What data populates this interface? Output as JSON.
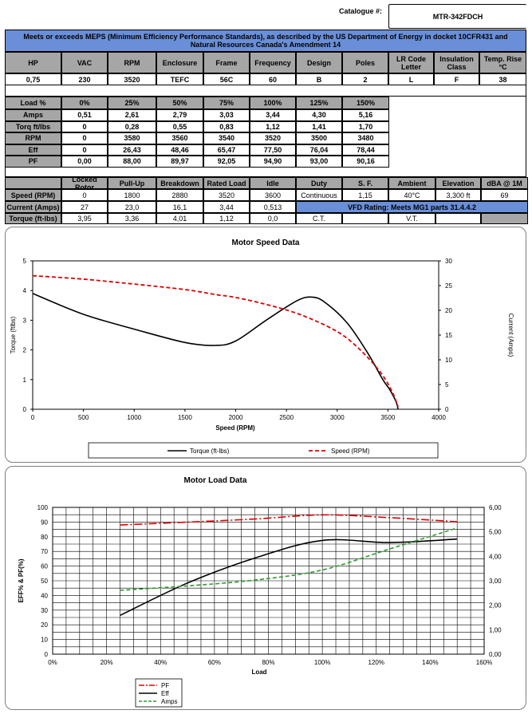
{
  "catalogue": {
    "label": "Catalogue #:",
    "value": "MTR-342FDCH"
  },
  "banner": "Meets or exceeds MEPS (Minimum Efficiency Performance Standards), as described by the US Department of Energy in docket 10CFR431 and Natural Resources Canada's Amendment 14",
  "specs": {
    "headers": [
      "HP",
      "VAC",
      "RPM",
      "Enclosure",
      "Frame",
      "Frequency",
      "Design",
      "Poles",
      "LR Code Letter",
      "Insulation Class",
      "Temp. Rise °C"
    ],
    "values": [
      "0,75",
      "230",
      "3520",
      "TEFC",
      "56C",
      "60",
      "B",
      "2",
      "L",
      "F",
      "38"
    ]
  },
  "load_table": {
    "headers": [
      "Load %",
      "0%",
      "25%",
      "50%",
      "75%",
      "100%",
      "125%",
      "150%"
    ],
    "rows": [
      [
        "Amps",
        "0,51",
        "2,61",
        "2,79",
        "3,03",
        "3,44",
        "4,30",
        "5,16"
      ],
      [
        "Torq ft/lbs",
        "0",
        "0,28",
        "0,55",
        "0,83",
        "1,12",
        "1,41",
        "1,70"
      ],
      [
        "RPM",
        "0",
        "3580",
        "3560",
        "3540",
        "3520",
        "3500",
        "3480"
      ],
      [
        "Eff",
        "0",
        "26,43",
        "48,46",
        "65,47",
        "77,50",
        "76,04",
        "78,44"
      ],
      [
        "PF",
        "0,00",
        "88,00",
        "89,97",
        "92,05",
        "94,90",
        "93,00",
        "90,16"
      ]
    ]
  },
  "perf_table": {
    "headers": [
      "Locked Rotor",
      "Pull-Up",
      "Breakdown",
      "Rated Load",
      "Idle",
      "Duty",
      "S. F.",
      "Ambient",
      "Elevation",
      "dBA @ 1M"
    ],
    "speed_label": "Speed (RPM)",
    "speed": [
      "0",
      "1800",
      "2880",
      "3520",
      "3600",
      "Continuous",
      "1,15",
      "40°C",
      "3,300 ft",
      "69"
    ],
    "current_label": "Current (Amps)",
    "current": [
      "27",
      "23,0",
      "16,1",
      "3,44",
      "0,513"
    ],
    "vfd": "VFD Rating: Meets MG1 parts 31.4.4.2",
    "torque_label": "Torque (ft-lbs)",
    "torque": [
      "3,95",
      "3,36",
      "4,01",
      "1,12",
      "0,0",
      "C.T.",
      "",
      "V.T.",
      ""
    ]
  },
  "colors": {
    "header_gray": "#a6a6a6",
    "banner_blue": "#6a8fd8",
    "red": "#e00000",
    "green": "#2e9a2e",
    "black": "#000000"
  },
  "chart_data": [
    {
      "type": "line",
      "title": "Motor Speed Data",
      "xlabel": "Speed (RPM)",
      "ylabel": "Torque (ftlbs)",
      "ylabel_right": "Current (Amps)",
      "xlim": [
        0,
        4000
      ],
      "ylim": [
        0,
        5
      ],
      "ylim_right": [
        0,
        30
      ],
      "x_ticks": [
        "0",
        "500",
        "1000",
        "1500",
        "2000",
        "2500",
        "3000",
        "3500",
        "4000"
      ],
      "y_ticks": [
        "0",
        "1",
        "2",
        "3",
        "4",
        "5"
      ],
      "y_ticks_right": [
        "0",
        "5",
        "10",
        "15",
        "20",
        "25",
        "30"
      ],
      "series": [
        {
          "name": "Torque (ft-lbs)",
          "axis": "left",
          "style": "solid",
          "color": "#000000",
          "x": [
            0,
            500,
            1000,
            1500,
            1800,
            2000,
            2300,
            2600,
            2750,
            2880,
            3100,
            3300,
            3450,
            3520,
            3580,
            3600
          ],
          "y": [
            3.9,
            3.2,
            2.7,
            2.25,
            2.15,
            2.3,
            3.0,
            3.65,
            3.78,
            3.6,
            2.9,
            1.9,
            1.0,
            0.65,
            0.25,
            0.0
          ]
        },
        {
          "name": "Speed (RPM)",
          "axis": "right",
          "style": "dashed",
          "color": "#e00000",
          "x": [
            0,
            500,
            1000,
            1500,
            1800,
            2000,
            2300,
            2600,
            2900,
            3100,
            3300,
            3450,
            3550,
            3600
          ],
          "y": [
            27,
            26.3,
            25.3,
            24.2,
            23.2,
            22.6,
            21.2,
            19.4,
            16.8,
            14.3,
            10.5,
            6.8,
            3.2,
            0.5
          ]
        }
      ]
    },
    {
      "type": "line",
      "title": "Motor Load Data",
      "xlabel": "Load",
      "ylabel": "EFF% & PF(%)",
      "xlim": [
        0,
        160
      ],
      "ylim": [
        0,
        100
      ],
      "ylim_right": [
        0,
        6
      ],
      "x_ticks": [
        "0%",
        "20%",
        "40%",
        "60%",
        "80%",
        "100%",
        "120%",
        "140%",
        "160%"
      ],
      "y_ticks": [
        "0",
        "10",
        "20",
        "30",
        "40",
        "50",
        "60",
        "70",
        "80",
        "90",
        "100"
      ],
      "y_ticks_right": [
        "0,00",
        "1,00",
        "2,00",
        "3,00",
        "4,00",
        "5,00",
        "6,00"
      ],
      "series": [
        {
          "name": "PF",
          "axis": "left",
          "style": "dashdot",
          "color": "#e00000",
          "x": [
            25,
            50,
            75,
            100,
            125,
            150
          ],
          "y": [
            88.0,
            89.97,
            92.05,
            94.9,
            93.0,
            90.16
          ]
        },
        {
          "name": "Eff",
          "axis": "left",
          "style": "solid",
          "color": "#000000",
          "x": [
            25,
            50,
            75,
            100,
            125,
            150
          ],
          "y": [
            26.43,
            48.46,
            65.47,
            77.5,
            76.04,
            78.44
          ]
        },
        {
          "name": "Amps",
          "axis": "right",
          "style": "dashed",
          "color": "#2e9a2e",
          "x": [
            25,
            50,
            75,
            100,
            125,
            150
          ],
          "y": [
            2.61,
            2.79,
            3.03,
            3.44,
            4.3,
            5.16
          ]
        }
      ]
    }
  ]
}
